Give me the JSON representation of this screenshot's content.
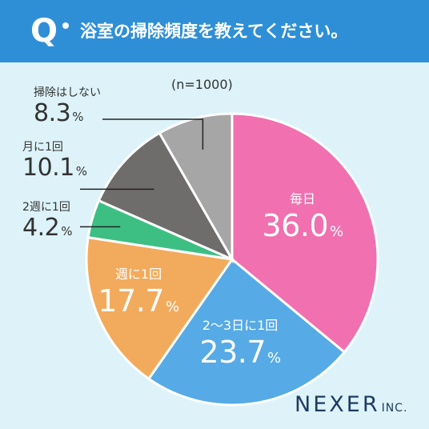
{
  "header": {
    "q_mark": "Q",
    "question": "浴室の掃除頻度を教えてください。",
    "bg_color": "#2f8fd6"
  },
  "chart_data": {
    "type": "pie",
    "note": "(n=1000)",
    "unit": "%",
    "start_angle_deg": 0,
    "direction": "clockwise",
    "slices": [
      {
        "label": "毎日",
        "value": 36.0,
        "color": "#f070b0"
      },
      {
        "label": "2〜3日に1回",
        "value": 23.7,
        "color": "#56aae6"
      },
      {
        "label": "週に1回",
        "value": 17.7,
        "color": "#f2ab5c"
      },
      {
        "label": "2週に1回",
        "value": 4.2,
        "color": "#3dbf84"
      },
      {
        "label": "月に1回",
        "value": 10.1,
        "color": "#6f6c6c"
      },
      {
        "label": "掃除はしない",
        "value": 8.3,
        "color": "#a6a6a6"
      }
    ],
    "display": {
      "inside": [
        {
          "name": "毎日",
          "pct": "36.0"
        },
        {
          "name": "2〜3日に1回",
          "pct": "23.7"
        },
        {
          "name": "週に1回",
          "pct": "17.7"
        }
      ],
      "outside": [
        {
          "name": "2週に1回",
          "pct": "4.2"
        },
        {
          "name": "月に1回",
          "pct": "10.1"
        },
        {
          "name": "掃除はしない",
          "pct": "8.3"
        }
      ]
    }
  },
  "logo": {
    "main": "NEXER",
    "sub": "INC."
  }
}
